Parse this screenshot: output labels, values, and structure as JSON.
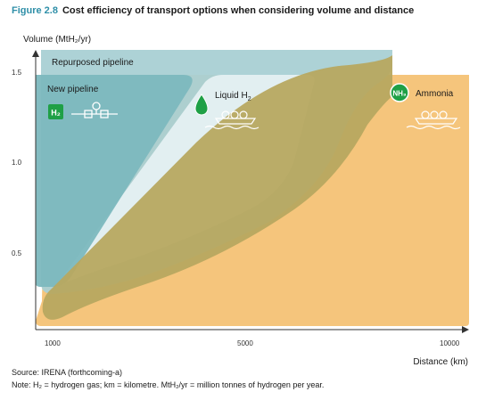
{
  "figure": {
    "number": "Figure 2.8",
    "title": "Cost efficiency of transport options when considering volume and distance"
  },
  "chart_data": {
    "type": "area",
    "title": "Cost efficiency of transport options when considering volume and distance",
    "ylabel": "Volume (MtH₂/yr)",
    "xlabel": "Distance (km)",
    "x_ticks": [
      "1000",
      "5000",
      "10000"
    ],
    "y_ticks": [
      "1.5",
      "1.0",
      "0.5"
    ],
    "series": [
      {
        "name": "Repurposed pipeline",
        "color": "#a9d0d4",
        "approx_distance_km": [
          1000,
          9200
        ],
        "approx_volume": [
          0.4,
          1.5
        ]
      },
      {
        "name": "New pipeline",
        "color": "#7cb8be",
        "approx_distance_km": [
          1000,
          4000
        ],
        "approx_volume": [
          0.4,
          1.5
        ]
      },
      {
        "name": "Liquid H₂",
        "color": "#dcecee",
        "approx_distance_km": [
          1000,
          7500
        ],
        "approx_volume": [
          0.1,
          1.5
        ]
      },
      {
        "name": "Ammonia",
        "color": "#f5c57c",
        "approx_distance_km": [
          1000,
          10000
        ],
        "approx_volume": [
          0.1,
          1.5
        ]
      }
    ]
  },
  "labels": {
    "repurposed": "Repurposed pipeline",
    "new_pipeline": "New pipeline",
    "liquid": "Liquid H",
    "liquid_sub": "2",
    "ammonia": "Ammonia",
    "h2_badge": "H₂",
    "nh3_badge": "NH₃"
  },
  "source": "Source: IRENA (forthcoming-a)",
  "note": "Note: H₂ = hydrogen gas; km = kilometre. MtH₂/yr = million tonnes of hydrogen per year.",
  "colors": {
    "accent": "#2f8fa8",
    "ammonia": "#f5c57c",
    "repurposed": "#a9d0d4",
    "new_pipeline": "#7cb8be",
    "liquid": "#dcecee",
    "overlap": "#b7a860",
    "icon_green": "#1fa046"
  }
}
